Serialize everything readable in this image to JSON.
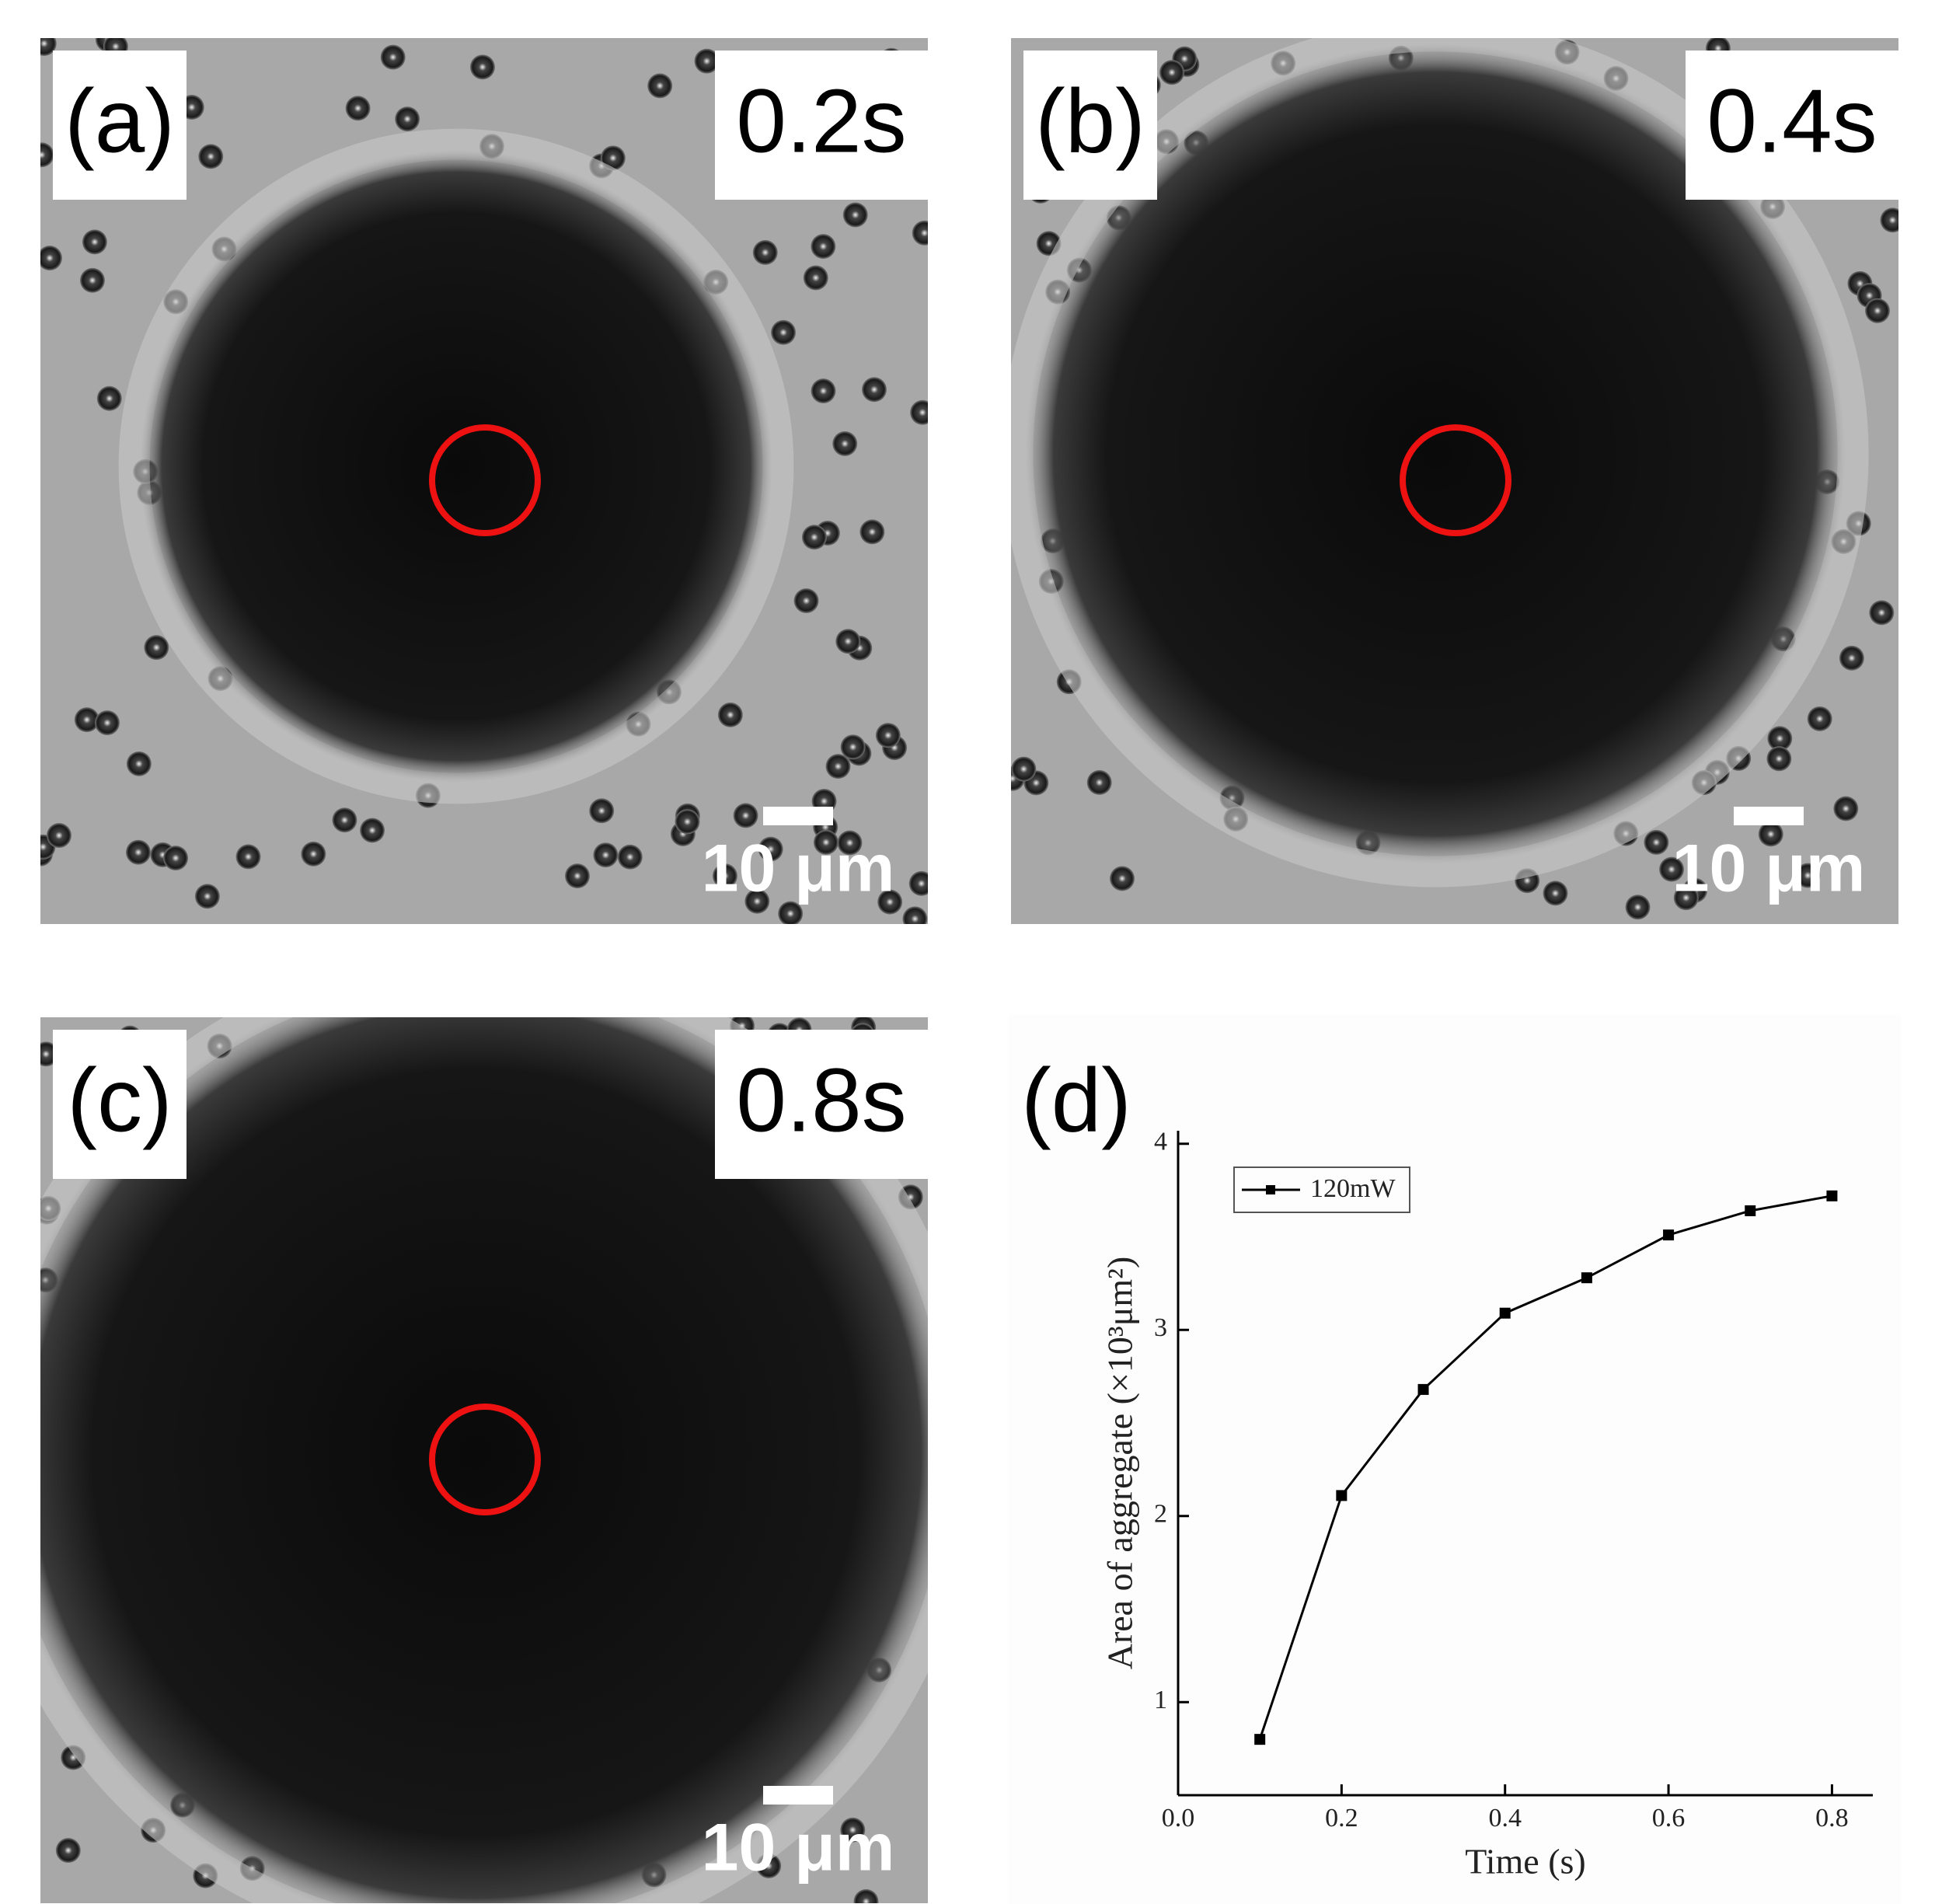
{
  "panels": [
    {
      "label": "(a)",
      "time": "0.2s",
      "scale_bar": "10 μm"
    },
    {
      "label": "(b)",
      "time": "0.4s",
      "scale_bar": "10 μm"
    },
    {
      "label": "(c)",
      "time": "0.8s",
      "scale_bar": "10 μm"
    }
  ],
  "chart_data": {
    "type": "line",
    "panel_label": "(d)",
    "x_label": "Time (s)",
    "y_label": "Area of aggregate (×10³μm²)",
    "x": [
      0.1,
      0.2,
      0.3,
      0.4,
      0.5,
      0.6,
      0.7,
      0.8
    ],
    "series": [
      {
        "name": "120mW",
        "color": "#000000",
        "marker": "square",
        "values": [
          0.8,
          2.11,
          2.68,
          3.09,
          3.28,
          3.51,
          3.64,
          3.72
        ]
      }
    ],
    "xlim": [
      0,
      0.85
    ],
    "ylim": [
      0.5,
      4.07
    ],
    "xticks": [
      {
        "value": 0,
        "label": "0.0"
      },
      0.2,
      0.4,
      0.6,
      0.8
    ],
    "yticks": [
      1,
      2,
      3,
      4
    ],
    "legend": "upper left"
  }
}
